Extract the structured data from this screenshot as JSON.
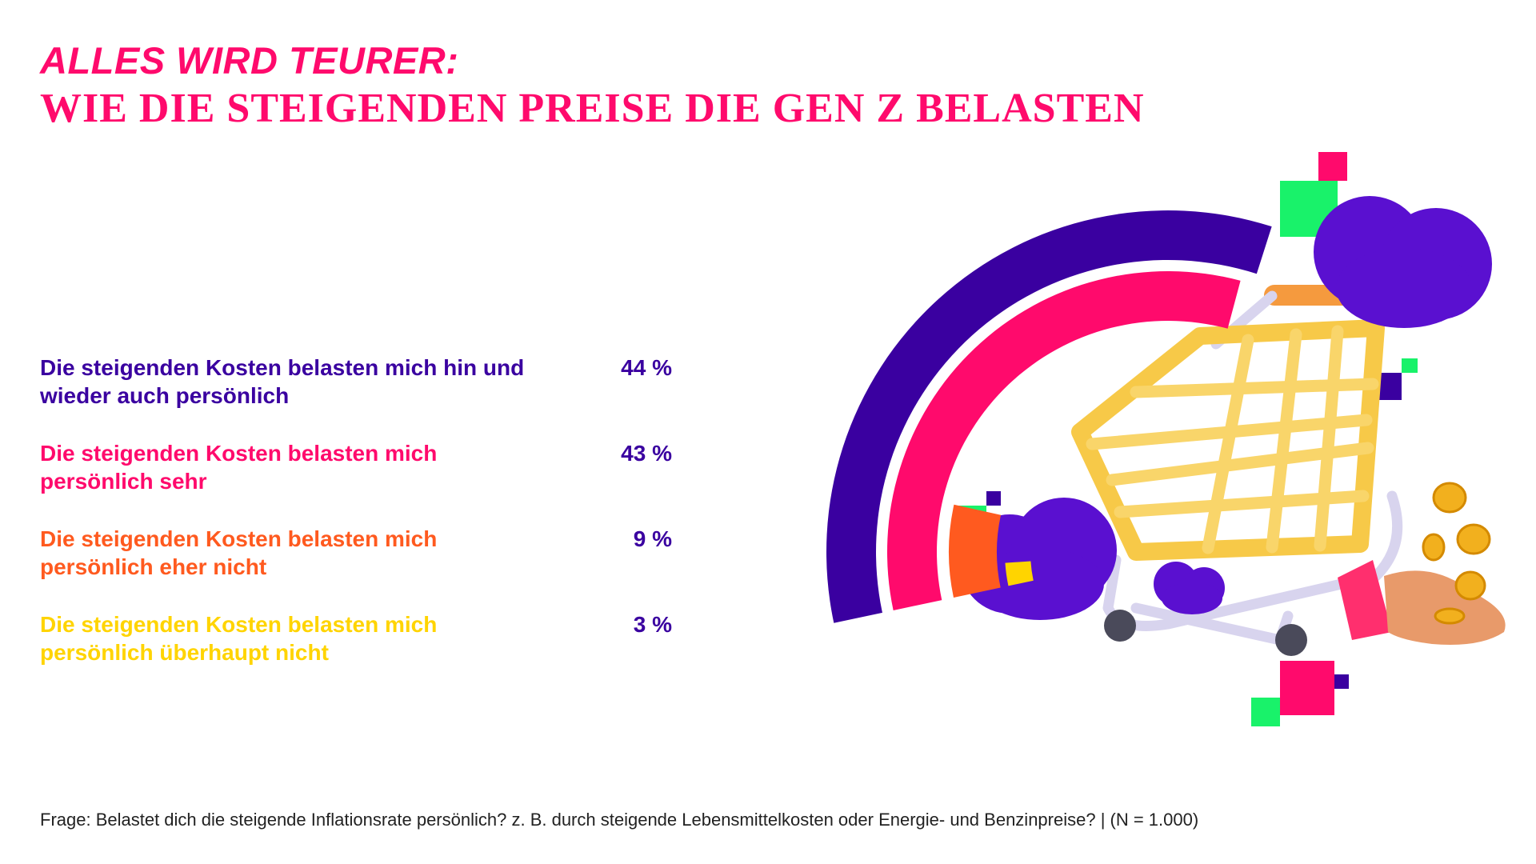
{
  "header": {
    "title": "ALLES WIRD TEURER:",
    "subtitle": "WIE DIE STEIGENDEN PREISE DIE GEN Z BELASTEN"
  },
  "chart_data": {
    "type": "radial-bar",
    "unit": "%",
    "max": 100,
    "series": [
      {
        "label": "Die steigenden Kosten belasten mich hin und wieder auch persönlich",
        "value": 44,
        "value_label": "44 %",
        "color": "#3a00a0"
      },
      {
        "label": "Die steigenden Kosten belasten mich persönlich sehr",
        "value": 43,
        "value_label": "43 %",
        "color": "#ff0a6c"
      },
      {
        "label": "Die steigenden Kosten belasten mich persönlich eher nicht",
        "value": 9,
        "value_label": "9 %",
        "color": "#ff5a1f"
      },
      {
        "label": "Die steigenden Kosten belasten mich persönlich überhaupt nicht",
        "value": 3,
        "value_label": "3 %",
        "color": "#ffd400"
      }
    ],
    "value_color": "#3a00a0"
  },
  "footer": {
    "note": "Frage: Belastet dich die steigende Inflationsrate persönlich? z. B. durch steigende Lebensmittelkosten oder Energie- und Benzinpreise? | (N = 1.000)"
  },
  "illustration": {
    "name": "shopping-cart-illustration",
    "colors": {
      "cart": "#f7c948",
      "cloud": "#5a10d0",
      "green": "#19f26a",
      "pink": "#ff0a6c",
      "navy": "#3a00a0",
      "coin": "#f2b01e"
    }
  }
}
